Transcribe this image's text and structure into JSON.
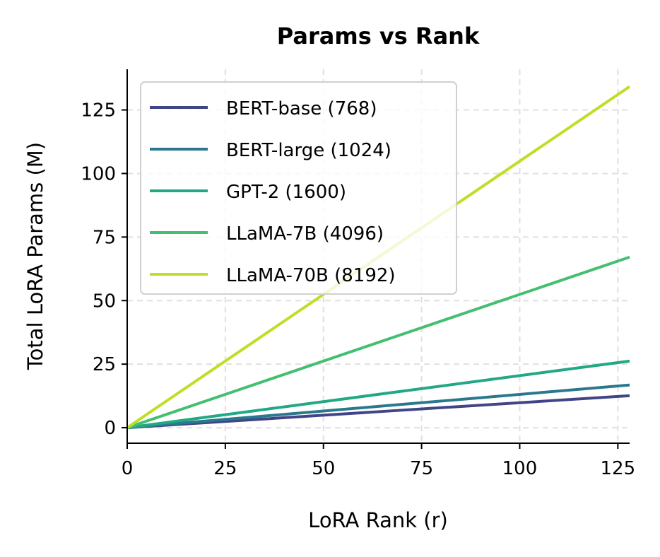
{
  "chart_data": {
    "type": "line",
    "title": "Params vs Rank",
    "xlabel": "LoRA Rank (r)",
    "ylabel": "Total LoRA Params (M)",
    "xlim": [
      0,
      128
    ],
    "ylim": [
      -6.1,
      141
    ],
    "xticks": [
      0,
      25,
      50,
      75,
      100,
      125
    ],
    "yticks": [
      0,
      25,
      50,
      75,
      100,
      125
    ],
    "grid": true,
    "legend_position": "top-left",
    "x": [
      0,
      1,
      2,
      4,
      8,
      16,
      32,
      64,
      128
    ],
    "series": [
      {
        "name": "BERT-base (768)",
        "color": "#414487",
        "values": [
          0,
          0.098,
          0.197,
          0.393,
          0.786,
          1.573,
          3.146,
          6.291,
          12.58
        ]
      },
      {
        "name": "BERT-large (1024)",
        "color": "#2a788e",
        "values": [
          0,
          0.131,
          0.262,
          0.524,
          1.049,
          2.097,
          4.194,
          8.389,
          16.78
        ]
      },
      {
        "name": "GPT-2 (1600)",
        "color": "#22a884",
        "values": [
          0,
          0.205,
          0.41,
          0.819,
          1.638,
          3.277,
          6.554,
          13.11,
          26.21
        ]
      },
      {
        "name": "LLaMA-7B (4096)",
        "color": "#44bf70",
        "values": [
          0,
          0.524,
          1.049,
          2.097,
          4.194,
          8.389,
          16.78,
          33.55,
          67.11
        ]
      },
      {
        "name": "LLaMA-70B (8192)",
        "color": "#bddf26",
        "values": [
          0,
          1.049,
          2.097,
          4.194,
          8.389,
          16.78,
          33.55,
          67.11,
          134.2
        ]
      }
    ]
  }
}
